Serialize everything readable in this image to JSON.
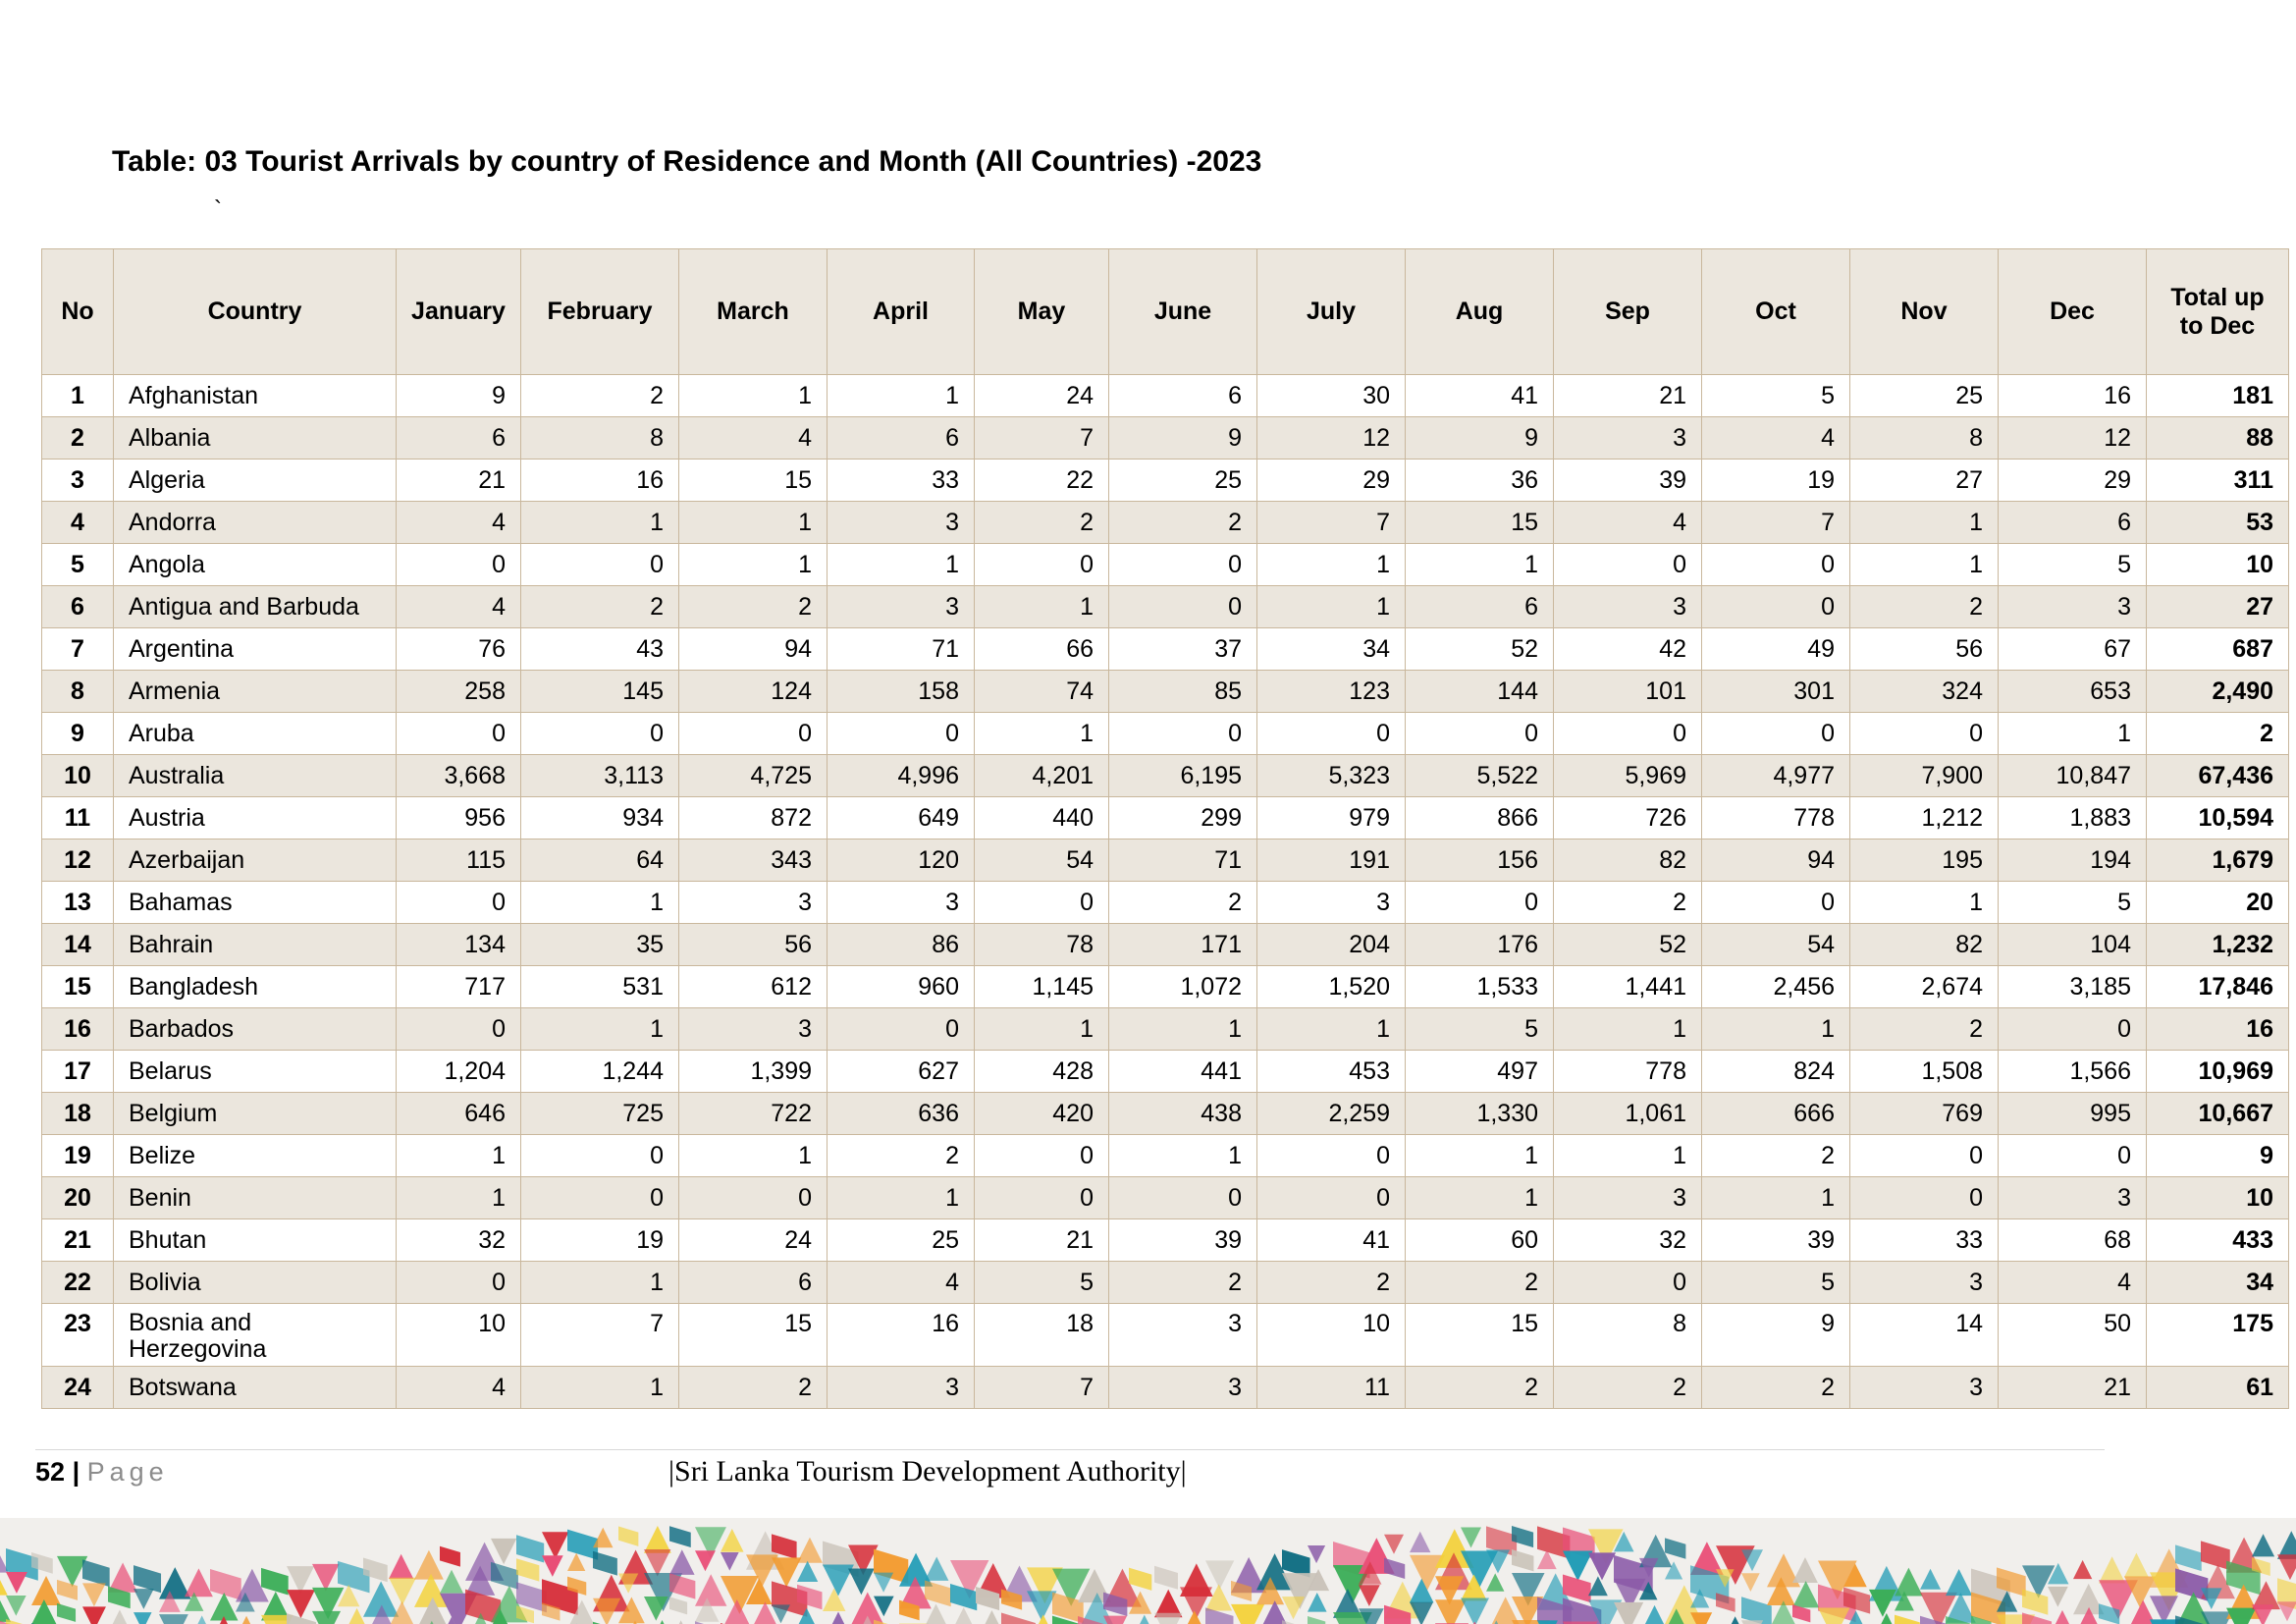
{
  "title": "Table: 03 Tourist Arrivals by country of Residence and Month (All Countries) -2023",
  "stray_mark": "`",
  "table": {
    "headers": {
      "no": "No",
      "country": "Country",
      "months": [
        "January",
        "February",
        "March",
        "April",
        "May",
        "June",
        "July",
        "Aug",
        "Sep",
        "Oct",
        "Nov",
        "Dec"
      ],
      "total_line1": "Total up",
      "total_line2": "to Dec"
    },
    "rows": [
      {
        "no": "1",
        "country": "Afghanistan",
        "m": [
          "9",
          "2",
          "1",
          "1",
          "24",
          "6",
          "30",
          "41",
          "21",
          "5",
          "25",
          "16"
        ],
        "total": "181"
      },
      {
        "no": "2",
        "country": "Albania",
        "m": [
          "6",
          "8",
          "4",
          "6",
          "7",
          "9",
          "12",
          "9",
          "3",
          "4",
          "8",
          "12"
        ],
        "total": "88"
      },
      {
        "no": "3",
        "country": "Algeria",
        "m": [
          "21",
          "16",
          "15",
          "33",
          "22",
          "25",
          "29",
          "36",
          "39",
          "19",
          "27",
          "29"
        ],
        "total": "311"
      },
      {
        "no": "4",
        "country": "Andorra",
        "m": [
          "4",
          "1",
          "1",
          "3",
          "2",
          "2",
          "7",
          "15",
          "4",
          "7",
          "1",
          "6"
        ],
        "total": "53"
      },
      {
        "no": "5",
        "country": "Angola",
        "m": [
          "0",
          "0",
          "1",
          "1",
          "0",
          "0",
          "1",
          "1",
          "0",
          "0",
          "1",
          "5"
        ],
        "total": "10"
      },
      {
        "no": "6",
        "country": "Antigua and Barbuda",
        "m": [
          "4",
          "2",
          "2",
          "3",
          "1",
          "0",
          "1",
          "6",
          "3",
          "0",
          "2",
          "3"
        ],
        "total": "27"
      },
      {
        "no": "7",
        "country": "Argentina",
        "m": [
          "76",
          "43",
          "94",
          "71",
          "66",
          "37",
          "34",
          "52",
          "42",
          "49",
          "56",
          "67"
        ],
        "total": "687"
      },
      {
        "no": "8",
        "country": "Armenia",
        "m": [
          "258",
          "145",
          "124",
          "158",
          "74",
          "85",
          "123",
          "144",
          "101",
          "301",
          "324",
          "653"
        ],
        "total": "2,490"
      },
      {
        "no": "9",
        "country": "Aruba",
        "m": [
          "0",
          "0",
          "0",
          "0",
          "1",
          "0",
          "0",
          "0",
          "0",
          "0",
          "0",
          "1"
        ],
        "total": "2"
      },
      {
        "no": "10",
        "country": "Australia",
        "m": [
          "3,668",
          "3,113",
          "4,725",
          "4,996",
          "4,201",
          "6,195",
          "5,323",
          "5,522",
          "5,969",
          "4,977",
          "7,900",
          "10,847"
        ],
        "total": "67,436"
      },
      {
        "no": "11",
        "country": "Austria",
        "m": [
          "956",
          "934",
          "872",
          "649",
          "440",
          "299",
          "979",
          "866",
          "726",
          "778",
          "1,212",
          "1,883"
        ],
        "total": "10,594"
      },
      {
        "no": "12",
        "country": "Azerbaijan",
        "m": [
          "115",
          "64",
          "343",
          "120",
          "54",
          "71",
          "191",
          "156",
          "82",
          "94",
          "195",
          "194"
        ],
        "total": "1,679"
      },
      {
        "no": "13",
        "country": "Bahamas",
        "m": [
          "0",
          "1",
          "3",
          "3",
          "0",
          "2",
          "3",
          "0",
          "2",
          "0",
          "1",
          "5"
        ],
        "total": "20"
      },
      {
        "no": "14",
        "country": "Bahrain",
        "m": [
          "134",
          "35",
          "56",
          "86",
          "78",
          "171",
          "204",
          "176",
          "52",
          "54",
          "82",
          "104"
        ],
        "total": "1,232"
      },
      {
        "no": "15",
        "country": "Bangladesh",
        "m": [
          "717",
          "531",
          "612",
          "960",
          "1,145",
          "1,072",
          "1,520",
          "1,533",
          "1,441",
          "2,456",
          "2,674",
          "3,185"
        ],
        "total": "17,846"
      },
      {
        "no": "16",
        "country": "Barbados",
        "m": [
          "0",
          "1",
          "3",
          "0",
          "1",
          "1",
          "1",
          "5",
          "1",
          "1",
          "2",
          "0"
        ],
        "total": "16"
      },
      {
        "no": "17",
        "country": "Belarus",
        "m": [
          "1,204",
          "1,244",
          "1,399",
          "627",
          "428",
          "441",
          "453",
          "497",
          "778",
          "824",
          "1,508",
          "1,566"
        ],
        "total": "10,969"
      },
      {
        "no": "18",
        "country": "Belgium",
        "m": [
          "646",
          "725",
          "722",
          "636",
          "420",
          "438",
          "2,259",
          "1,330",
          "1,061",
          "666",
          "769",
          "995"
        ],
        "total": "10,667"
      },
      {
        "no": "19",
        "country": "Belize",
        "m": [
          "1",
          "0",
          "1",
          "2",
          "0",
          "1",
          "0",
          "1",
          "1",
          "2",
          "0",
          "0"
        ],
        "total": "9"
      },
      {
        "no": "20",
        "country": "Benin",
        "m": [
          "1",
          "0",
          "0",
          "1",
          "0",
          "0",
          "0",
          "1",
          "3",
          "1",
          "0",
          "3"
        ],
        "total": "10"
      },
      {
        "no": "21",
        "country": "Bhutan",
        "m": [
          "32",
          "19",
          "24",
          "25",
          "21",
          "39",
          "41",
          "60",
          "32",
          "39",
          "33",
          "68"
        ],
        "total": "433"
      },
      {
        "no": "22",
        "country": "Bolivia",
        "m": [
          "0",
          "1",
          "6",
          "4",
          "5",
          "2",
          "2",
          "2",
          "0",
          "5",
          "3",
          "4"
        ],
        "total": "34"
      },
      {
        "no": "23",
        "country": "Bosnia and Herzegovina",
        "m": [
          "10",
          "7",
          "15",
          "16",
          "18",
          "3",
          "10",
          "15",
          "8",
          "9",
          "14",
          "50"
        ],
        "total": "175"
      },
      {
        "no": "24",
        "country": "Botswana",
        "m": [
          "4",
          "1",
          "2",
          "3",
          "7",
          "3",
          "11",
          "2",
          "2",
          "2",
          "3",
          "21"
        ],
        "total": "61"
      }
    ]
  },
  "footer": {
    "page_number": "52",
    "separator": "|",
    "page_word": "Page",
    "org": "|Sri Lanka Tourism Development Authority|"
  },
  "banner_palette": [
    "#e94e77",
    "#1f9bb5",
    "#f29a2e",
    "#3cae58",
    "#f3d13a",
    "#8a5aa8",
    "#d62f3a",
    "#0f6d82",
    "#c9c2b8"
  ]
}
